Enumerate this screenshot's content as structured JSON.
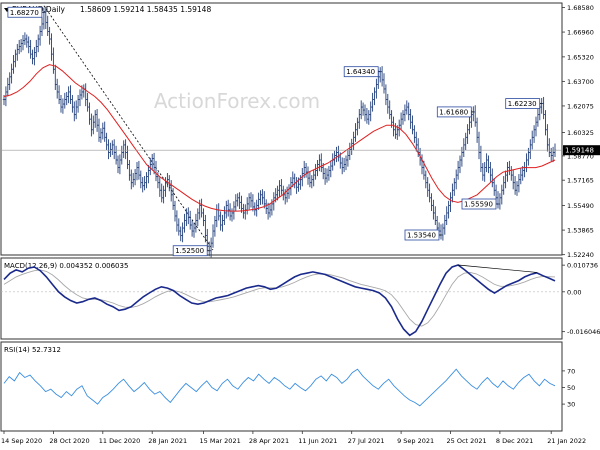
{
  "chart_data": {
    "type": "line",
    "symbol_header": "EURAUD,Daily",
    "ohlc": "1.58609 1.59214 1.58435 1.59148",
    "watermark": "ActionForex.com",
    "last_price_label": "1.59148",
    "price_axis": {
      "ylim": [
        1.5235,
        1.6875
      ],
      "ticks": [
        "1.68580",
        "1.66960",
        "1.65320",
        "1.63700",
        "1.62075",
        "1.60325",
        "1.58770",
        "1.57165",
        "1.55490",
        "1.53865",
        "1.52240"
      ],
      "tick_values": [
        1.6858,
        1.6696,
        1.6532,
        1.637,
        1.62075,
        1.60325,
        1.5877,
        1.57165,
        1.5549,
        1.53865,
        1.5224
      ]
    },
    "x_axis": {
      "labels": [
        "14 Sep 2020",
        "28 Oct 2020",
        "11 Dec 2020",
        "28 Jan 2021",
        "15 Mar 2021",
        "28 Apr 2021",
        "11 Jun 2021",
        "27 Jul 2021",
        "9 Sep 2021",
        "25 Oct 2021",
        "8 Dec 2021",
        "21 Jan 2022"
      ],
      "label_index": [
        0,
        32,
        64,
        96,
        128,
        160,
        192,
        224,
        256,
        288,
        320,
        352
      ]
    },
    "price_closes": [
      1.625,
      1.63,
      1.635,
      1.64,
      1.645,
      1.65,
      1.655,
      1.658,
      1.66,
      1.662,
      1.664,
      1.665,
      1.663,
      1.66,
      1.655,
      1.652,
      1.656,
      1.66,
      1.665,
      1.67,
      1.675,
      1.6827,
      1.676,
      1.67,
      1.665,
      1.655,
      1.645,
      1.635,
      1.63,
      1.625,
      1.62,
      1.622,
      1.625,
      1.627,
      1.63,
      1.625,
      1.62,
      1.615,
      1.62,
      1.625,
      1.628,
      1.63,
      1.632,
      1.625,
      1.62,
      1.612,
      1.605,
      1.61,
      1.615,
      1.608,
      1.6,
      1.603,
      1.606,
      1.6,
      1.595,
      1.59,
      1.592,
      1.595,
      1.59,
      1.585,
      1.58,
      1.585,
      1.59,
      1.595,
      1.59,
      1.582,
      1.575,
      1.57,
      1.572,
      1.576,
      1.58,
      1.575,
      1.57,
      1.568,
      1.57,
      1.574,
      1.578,
      1.582,
      1.586,
      1.58,
      1.574,
      1.57,
      1.565,
      1.56,
      1.565,
      1.57,
      1.572,
      1.568,
      1.562,
      1.555,
      1.548,
      1.542,
      1.538,
      1.535,
      1.54,
      1.545,
      1.55,
      1.547,
      1.542,
      1.538,
      1.54,
      1.545,
      1.55,
      1.555,
      1.55,
      1.545,
      1.535,
      1.528,
      1.525,
      1.53,
      1.538,
      1.545,
      1.552,
      1.548,
      1.542,
      1.545,
      1.55,
      1.555,
      1.552,
      1.548,
      1.55,
      1.554,
      1.558,
      1.56,
      1.557,
      1.553,
      1.55,
      1.552,
      1.556,
      1.56,
      1.558,
      1.554,
      1.552,
      1.555,
      1.559,
      1.562,
      1.56,
      1.556,
      1.553,
      1.55,
      1.552,
      1.556,
      1.56,
      1.562,
      1.565,
      1.568,
      1.565,
      1.562,
      1.56,
      1.563,
      1.566,
      1.57,
      1.573,
      1.57,
      1.567,
      1.569,
      1.572,
      1.576,
      1.58,
      1.577,
      1.573,
      1.57,
      1.572,
      1.575,
      1.578,
      1.582,
      1.585,
      1.58,
      1.576,
      1.573,
      1.575,
      1.578,
      1.581,
      1.585,
      1.588,
      1.59,
      1.587,
      1.583,
      1.58,
      1.582,
      1.585,
      1.588,
      1.592,
      1.596,
      1.6,
      1.605,
      1.61,
      1.615,
      1.62,
      1.618,
      1.615,
      1.612,
      1.615,
      1.62,
      1.625,
      1.63,
      1.635,
      1.64,
      1.6434,
      1.638,
      1.632,
      1.625,
      1.62,
      1.615,
      1.61,
      1.605,
      1.602,
      1.605,
      1.608,
      1.612,
      1.615,
      1.618,
      1.62,
      1.615,
      1.61,
      1.605,
      1.6,
      1.595,
      1.59,
      1.585,
      1.58,
      1.575,
      1.57,
      1.565,
      1.56,
      1.555,
      1.55,
      1.545,
      1.54,
      1.538,
      1.5354,
      1.54,
      1.545,
      1.55,
      1.555,
      1.56,
      1.565,
      1.57,
      1.575,
      1.58,
      1.585,
      1.59,
      1.595,
      1.6,
      1.605,
      1.61,
      1.615,
      1.6168,
      1.61,
      1.6,
      1.59,
      1.58,
      1.575,
      1.58,
      1.585,
      1.58,
      1.575,
      1.57,
      1.565,
      1.56,
      1.5559,
      1.56,
      1.565,
      1.57,
      1.575,
      1.58,
      1.578,
      1.575,
      1.57,
      1.565,
      1.568,
      1.572,
      1.575,
      1.578,
      1.58,
      1.585,
      1.59,
      1.595,
      1.6,
      1.605,
      1.61,
      1.615,
      1.62,
      1.6223,
      1.615,
      1.605,
      1.595,
      1.59,
      1.588,
      1.59,
      1.5915
    ],
    "ma_values": [
      1.627,
      1.628,
      1.63,
      1.633,
      1.637,
      1.642,
      1.646,
      1.648,
      1.647,
      1.644,
      1.64,
      1.636,
      1.633,
      1.63,
      1.627,
      1.623,
      1.618,
      1.612,
      1.606,
      1.6,
      1.594,
      1.588,
      1.582,
      1.578,
      1.574,
      1.571,
      1.568,
      1.565,
      1.562,
      1.559,
      1.5565,
      1.5545,
      1.553,
      1.552,
      1.5515,
      1.5512,
      1.5512,
      1.5515,
      1.552,
      1.5528,
      1.554,
      1.556,
      1.559,
      1.562,
      1.566,
      1.57,
      1.574,
      1.577,
      1.579,
      1.581,
      1.583,
      1.586,
      1.589,
      1.592,
      1.595,
      1.598,
      1.601,
      1.604,
      1.606,
      1.608,
      1.608,
      1.606,
      1.602,
      1.596,
      1.589,
      1.581,
      1.573,
      1.566,
      1.561,
      1.558,
      1.557,
      1.558,
      1.56,
      1.562,
      1.566,
      1.57,
      1.574,
      1.577,
      1.578,
      1.579,
      1.58,
      1.58,
      1.58,
      1.581,
      1.583,
      1.585
    ],
    "price_annotations": [
      {
        "label": "1.68270",
        "i": 21,
        "value": 1.6827,
        "side": "left"
      },
      {
        "label": "1.52500",
        "i": 108,
        "value": 1.525,
        "side": "left"
      },
      {
        "label": "1.64340",
        "i": 198,
        "value": 1.6434,
        "side": "left"
      },
      {
        "label": "1.53540",
        "i": 230,
        "value": 1.5354,
        "side": "left"
      },
      {
        "label": "1.61680",
        "i": 247,
        "value": 1.6168,
        "side": "left"
      },
      {
        "label": "1.55590",
        "i": 260,
        "value": 1.5559,
        "side": "left"
      },
      {
        "label": "1.62230",
        "i": 283,
        "value": 1.6223,
        "side": "left"
      }
    ],
    "macd": {
      "label": "MACD(12,26,9) 0.004352 0.006035",
      "ylim": [
        -0.0182,
        0.012
      ],
      "ticks": [
        "0.010736",
        "0.00",
        "-0.016046"
      ],
      "tick_values": [
        0.010736,
        0.0,
        -0.016046
      ],
      "line": [
        0.005,
        0.0075,
        0.0088,
        0.008,
        0.0095,
        0.01,
        0.0085,
        0.006,
        0.003,
        0.0,
        -0.002,
        -0.0035,
        -0.0045,
        -0.004,
        -0.003,
        -0.0025,
        -0.0035,
        -0.005,
        -0.006,
        -0.0075,
        -0.007,
        -0.006,
        -0.004,
        -0.002,
        -0.0005,
        0.001,
        0.002,
        0.0015,
        0.0005,
        -0.0015,
        -0.003,
        -0.0045,
        -0.005,
        -0.0045,
        -0.0035,
        -0.0025,
        -0.002,
        -0.0015,
        -0.0005,
        0.0005,
        0.0015,
        0.002,
        0.0025,
        0.002,
        0.001,
        0.0015,
        0.003,
        0.0045,
        0.006,
        0.007,
        0.0075,
        0.008,
        0.0075,
        0.007,
        0.006,
        0.005,
        0.004,
        0.003,
        0.002,
        0.0015,
        0.001,
        0.0005,
        -0.0005,
        -0.0025,
        -0.006,
        -0.011,
        -0.015,
        -0.0175,
        -0.016,
        -0.012,
        -0.007,
        -0.002,
        0.003,
        0.0075,
        0.01,
        0.0108,
        0.009,
        0.007,
        0.005,
        0.003,
        0.001,
        -0.0005,
        0.001,
        0.0025,
        0.0035,
        0.0045,
        0.006,
        0.007,
        0.0076,
        0.0065,
        0.0055,
        0.0044
      ],
      "signal": [
        0.003,
        0.0045,
        0.006,
        0.007,
        0.0078,
        0.0085,
        0.0088,
        0.0082,
        0.0068,
        0.0048,
        0.0025,
        0.0005,
        -0.0012,
        -0.0025,
        -0.003,
        -0.003,
        -0.0032,
        -0.0038,
        -0.0045,
        -0.0055,
        -0.0062,
        -0.0063,
        -0.0058,
        -0.0048,
        -0.0035,
        -0.002,
        -0.0008,
        0.0002,
        0.0005,
        0.0,
        -0.001,
        -0.0022,
        -0.0033,
        -0.004,
        -0.004,
        -0.0036,
        -0.0031,
        -0.0026,
        -0.002,
        -0.0012,
        -0.0004,
        0.0004,
        0.0012,
        0.0016,
        0.0016,
        0.0016,
        0.002,
        0.0028,
        0.0038,
        0.005,
        0.006,
        0.0068,
        0.0072,
        0.0072,
        0.0068,
        0.0062,
        0.0055,
        0.0046,
        0.0038,
        0.003,
        0.0024,
        0.0018,
        0.0012,
        0.0004,
        -0.0012,
        -0.004,
        -0.0075,
        -0.011,
        -0.0132,
        -0.0138,
        -0.0125,
        -0.0095,
        -0.0055,
        -0.0012,
        0.003,
        0.006,
        0.0075,
        0.0078,
        0.0072,
        0.006,
        0.0045,
        0.003,
        0.0022,
        0.0022,
        0.0026,
        0.0032,
        0.004,
        0.005,
        0.0058,
        0.0062,
        0.0061,
        0.006
      ]
    },
    "rsi": {
      "label": "RSI(14) 52.7312",
      "ylim": [
        0,
        100
      ],
      "ticks": [
        "70",
        "50",
        "30"
      ],
      "tick_values": [
        70,
        50,
        30
      ],
      "values": [
        55,
        63,
        58,
        68,
        62,
        65,
        58,
        52,
        45,
        48,
        42,
        38,
        45,
        40,
        48,
        52,
        40,
        35,
        30,
        38,
        42,
        48,
        55,
        60,
        52,
        45,
        50,
        56,
        48,
        42,
        45,
        38,
        32,
        40,
        48,
        55,
        50,
        45,
        52,
        58,
        50,
        46,
        55,
        60,
        52,
        48,
        56,
        62,
        58,
        66,
        60,
        55,
        62,
        58,
        52,
        48,
        55,
        50,
        46,
        52,
        60,
        64,
        58,
        66,
        62,
        55,
        60,
        68,
        72,
        64,
        58,
        52,
        48,
        55,
        60,
        52,
        46,
        40,
        35,
        32,
        28,
        34,
        40,
        46,
        52,
        58,
        65,
        72,
        64,
        58,
        52,
        48,
        56,
        62,
        55,
        50,
        58,
        52,
        48,
        56,
        62,
        66,
        58,
        52,
        60,
        55,
        52
      ]
    }
  }
}
